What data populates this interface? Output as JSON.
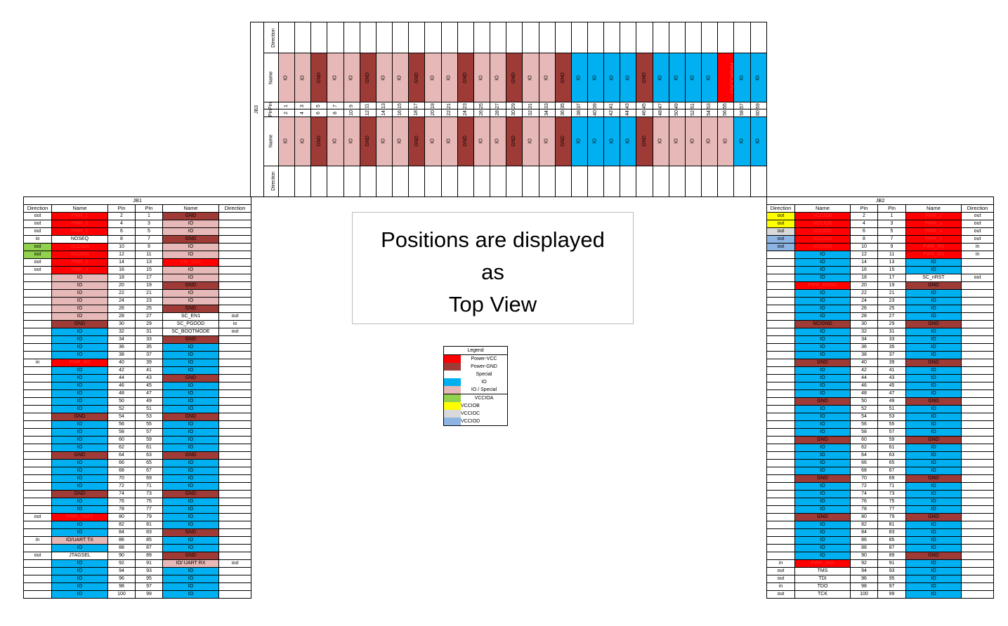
{
  "colors": {
    "vcc": "#ff0000",
    "gnd": "#9e3b37",
    "io": "#00b0f0",
    "iosp": "#e6b8b7",
    "vccioa": "#92d050",
    "vcciob": "#ffff00",
    "vccioc": "#d9d9d9",
    "vcciod": "#8db4e2",
    "white": "#ffffff"
  },
  "notice": [
    "Positions are displayed",
    "as",
    "Top View"
  ],
  "legend": {
    "title": "Legend",
    "items": [
      {
        "label": "Power-VCC",
        "type": "vcc"
      },
      {
        "label": "Power-GND",
        "type": "gnd"
      },
      {
        "label": "Special",
        "type": "white"
      },
      {
        "label": "IO",
        "type": "io"
      },
      {
        "label": "IO / Special",
        "type": "iosp"
      },
      {
        "label": "VCCIOA",
        "type": "vccioa"
      },
      {
        "label": "VCCIOB",
        "type": "vcciob"
      },
      {
        "label": "VCCIOC",
        "type": "vccioc"
      },
      {
        "label": "VCCIOD",
        "type": "vcciod"
      }
    ]
  },
  "jb1": {
    "title": "JB1",
    "headers": [
      "Direction",
      "Name",
      "Pin",
      "Pin",
      "Name",
      "Direction"
    ],
    "rows": [
      [
        "out",
        "PWR_1",
        "vcc",
        2,
        1,
        "GND",
        "gnd",
        ""
      ],
      [
        "out",
        "PWR_1",
        "vcc",
        4,
        3,
        "IO",
        "iosp",
        ""
      ],
      [
        "out",
        "PWR_1",
        "vcc",
        6,
        5,
        "IO",
        "iosp",
        ""
      ],
      [
        "io",
        "NOSEQ",
        "white",
        8,
        7,
        "GND",
        "gnd",
        ""
      ],
      [
        "out",
        "VCCIOA",
        "vcc",
        10,
        9,
        "IO",
        "iosp",
        ""
      ],
      [
        "out",
        "VCCIOA",
        "vcc",
        12,
        11,
        "IO",
        "iosp",
        ""
      ],
      [
        "out",
        "PWR_2",
        "vcc",
        14,
        13,
        "CM_VCC",
        "vcc",
        ""
      ],
      [
        "out",
        "PWR_2",
        "vcc",
        16,
        15,
        "IO",
        "iosp",
        ""
      ],
      [
        "",
        "IO",
        "iosp",
        18,
        17,
        "IO",
        "iosp",
        ""
      ],
      [
        "",
        "IO",
        "iosp",
        20,
        19,
        "GND",
        "gnd",
        ""
      ],
      [
        "",
        "IO",
        "iosp",
        22,
        21,
        "IO",
        "iosp",
        ""
      ],
      [
        "",
        "IO",
        "iosp",
        24,
        23,
        "IO",
        "iosp",
        ""
      ],
      [
        "",
        "IO",
        "iosp",
        26,
        25,
        "GND",
        "gnd",
        ""
      ],
      [
        "",
        "IO",
        "iosp",
        28,
        27,
        "SC_EN1",
        "white",
        "out"
      ],
      [
        "",
        "GND",
        "gnd",
        30,
        29,
        "SC_PGOOD",
        "white",
        "io"
      ],
      [
        "",
        "IO",
        "io",
        32,
        31,
        "SC_BOOTMODE",
        "white",
        "out"
      ],
      [
        "",
        "IO",
        "io",
        34,
        33,
        "GND",
        "gnd",
        ""
      ],
      [
        "",
        "IO",
        "io",
        36,
        35,
        "IO",
        "io",
        ""
      ],
      [
        "",
        "IO",
        "io",
        38,
        37,
        "IO",
        "io",
        ""
      ],
      [
        "in",
        "PWR_M2",
        "vcc",
        40,
        39,
        "IO",
        "io",
        ""
      ],
      [
        "",
        "IO",
        "io",
        42,
        41,
        "IO",
        "io",
        ""
      ],
      [
        "",
        "IO",
        "io",
        44,
        43,
        "GND",
        "gnd",
        ""
      ],
      [
        "",
        "IO",
        "io",
        46,
        45,
        "IO",
        "io",
        ""
      ],
      [
        "",
        "IO",
        "io",
        48,
        47,
        "IO",
        "io",
        ""
      ],
      [
        "",
        "IO",
        "io",
        50,
        49,
        "IO",
        "io",
        ""
      ],
      [
        "",
        "IO",
        "io",
        52,
        51,
        "IO",
        "io",
        ""
      ],
      [
        "",
        "GND",
        "gnd",
        54,
        53,
        "GND",
        "gnd",
        ""
      ],
      [
        "",
        "IO",
        "io",
        56,
        55,
        "IO",
        "io",
        ""
      ],
      [
        "",
        "IO",
        "io",
        58,
        57,
        "IO",
        "io",
        ""
      ],
      [
        "",
        "IO",
        "io",
        60,
        59,
        "IO",
        "io",
        ""
      ],
      [
        "",
        "IO",
        "io",
        62,
        61,
        "IO",
        "io",
        ""
      ],
      [
        "",
        "GND",
        "gnd",
        64,
        63,
        "GND",
        "gnd",
        ""
      ],
      [
        "",
        "IO",
        "io",
        66,
        65,
        "IO",
        "io",
        ""
      ],
      [
        "",
        "IO",
        "io",
        68,
        67,
        "IO",
        "io",
        ""
      ],
      [
        "",
        "IO",
        "io",
        70,
        69,
        "IO",
        "io",
        ""
      ],
      [
        "",
        "IO",
        "io",
        72,
        71,
        "IO",
        "io",
        ""
      ],
      [
        "",
        "GND",
        "gnd",
        74,
        73,
        "GND",
        "gnd",
        ""
      ],
      [
        "",
        "IO",
        "io",
        76,
        75,
        "IO",
        "io",
        ""
      ],
      [
        "",
        "IO",
        "io",
        78,
        77,
        "IO",
        "io",
        ""
      ],
      [
        "out",
        "PWR_VBAT",
        "vcc",
        80,
        79,
        "IO",
        "io",
        ""
      ],
      [
        "",
        "IO",
        "io",
        82,
        81,
        "IO",
        "io",
        ""
      ],
      [
        "",
        "IO",
        "io",
        84,
        83,
        "GND",
        "gnd",
        ""
      ],
      [
        "in",
        "IO/UART TX",
        "iosp",
        86,
        85,
        "IO",
        "io",
        ""
      ],
      [
        "",
        "IO",
        "io",
        88,
        87,
        "IO",
        "io",
        ""
      ],
      [
        "out",
        "JTAGSEL",
        "white",
        90,
        89,
        "GND",
        "gnd",
        ""
      ],
      [
        "",
        "IO",
        "io",
        92,
        91,
        "IO/ UART RX",
        "iosp",
        "out"
      ],
      [
        "",
        "IO",
        "io",
        94,
        93,
        "IO",
        "io",
        ""
      ],
      [
        "",
        "IO",
        "io",
        96,
        95,
        "IO",
        "io",
        ""
      ],
      [
        "",
        "IO",
        "io",
        98,
        97,
        "IO",
        "io",
        ""
      ],
      [
        "",
        "IO",
        "io",
        100,
        99,
        "IO",
        "io",
        ""
      ]
    ]
  },
  "jb2": {
    "title": "JB2",
    "headers": [
      "Direction",
      "Name",
      "Pin",
      "Pin",
      "Name",
      "Direction"
    ],
    "rows": [
      [
        "out",
        "vcciob",
        "VCCIOB",
        "vcc",
        2,
        1,
        "PWR_1",
        "vcc",
        "out"
      ],
      [
        "out",
        "vcciob",
        "VCCIOB",
        "vcc",
        4,
        3,
        "PWR_1",
        "vcc",
        "out"
      ],
      [
        "out",
        "vccioc",
        "VCCIOC",
        "vcc",
        6,
        5,
        "PWR_1",
        "vcc",
        "out"
      ],
      [
        "out",
        "vcciod",
        "VCCIOD",
        "vcc",
        8,
        7,
        "PWR_1",
        "vcc",
        "out"
      ],
      [
        "out",
        "vcciod",
        "VCCIOD",
        "vcc",
        10,
        9,
        "PWR_M1",
        "vcc",
        "in"
      ],
      [
        "",
        "",
        "IO",
        "io",
        12,
        11,
        "PWR_M1",
        "vcc",
        "in"
      ],
      [
        "",
        "",
        "IO",
        "io",
        14,
        13,
        "IO",
        "io",
        ""
      ],
      [
        "",
        "",
        "IO",
        "io",
        16,
        15,
        "IO",
        "io",
        ""
      ],
      [
        "",
        "",
        "IO",
        "io",
        18,
        17,
        "SC_nRST",
        "white",
        "out"
      ],
      [
        "",
        "",
        "PWR_M3/NC",
        "vcc",
        20,
        19,
        "GND",
        "gnd",
        ""
      ],
      [
        "",
        "",
        "IO",
        "io",
        22,
        21,
        "IO",
        "io",
        ""
      ],
      [
        "",
        "",
        "IO",
        "io",
        24,
        23,
        "IO",
        "io",
        ""
      ],
      [
        "",
        "",
        "IO",
        "io",
        26,
        25,
        "IO",
        "io",
        ""
      ],
      [
        "",
        "",
        "IO",
        "io",
        28,
        27,
        "IO",
        "io",
        ""
      ],
      [
        "",
        "",
        "NC/GND",
        "gnd",
        30,
        29,
        "GND",
        "gnd",
        ""
      ],
      [
        "",
        "",
        "IO",
        "io",
        32,
        31,
        "IO",
        "io",
        ""
      ],
      [
        "",
        "",
        "IO",
        "io",
        34,
        33,
        "IO",
        "io",
        ""
      ],
      [
        "",
        "",
        "IO",
        "io",
        36,
        35,
        "IO",
        "io",
        ""
      ],
      [
        "",
        "",
        "IO",
        "io",
        38,
        37,
        "IO",
        "io",
        ""
      ],
      [
        "",
        "",
        "GND",
        "gnd",
        40,
        39,
        "GND",
        "gnd",
        ""
      ],
      [
        "",
        "",
        "IO",
        "io",
        42,
        41,
        "IO",
        "io",
        ""
      ],
      [
        "",
        "",
        "IO",
        "io",
        44,
        43,
        "IO",
        "io",
        ""
      ],
      [
        "",
        "",
        "IO",
        "io",
        46,
        45,
        "IO",
        "io",
        ""
      ],
      [
        "",
        "",
        "IO",
        "io",
        48,
        47,
        "IO",
        "io",
        ""
      ],
      [
        "",
        "",
        "GND",
        "gnd",
        50,
        49,
        "GND",
        "gnd",
        ""
      ],
      [
        "",
        "",
        "IO",
        "io",
        52,
        51,
        "IO",
        "io",
        ""
      ],
      [
        "",
        "",
        "IO",
        "io",
        54,
        53,
        "IO",
        "io",
        ""
      ],
      [
        "",
        "",
        "IO",
        "io",
        56,
        55,
        "IO",
        "io",
        ""
      ],
      [
        "",
        "",
        "IO",
        "io",
        58,
        57,
        "IO",
        "io",
        ""
      ],
      [
        "",
        "",
        "GND",
        "gnd",
        60,
        59,
        "GND",
        "gnd",
        ""
      ],
      [
        "",
        "",
        "IO",
        "io",
        62,
        61,
        "IO",
        "io",
        ""
      ],
      [
        "",
        "",
        "IO",
        "io",
        64,
        63,
        "IO",
        "io",
        ""
      ],
      [
        "",
        "",
        "IO",
        "io",
        66,
        65,
        "IO",
        "io",
        ""
      ],
      [
        "",
        "",
        "IO",
        "io",
        68,
        67,
        "IO",
        "io",
        ""
      ],
      [
        "",
        "",
        "GND",
        "gnd",
        70,
        69,
        "GND",
        "gnd",
        ""
      ],
      [
        "",
        "",
        "IO",
        "io",
        72,
        71,
        "IO",
        "io",
        ""
      ],
      [
        "",
        "",
        "IO",
        "io",
        74,
        73,
        "IO",
        "io",
        ""
      ],
      [
        "",
        "",
        "IO",
        "io",
        76,
        75,
        "IO",
        "io",
        ""
      ],
      [
        "",
        "",
        "IO",
        "io",
        78,
        77,
        "IO",
        "io",
        ""
      ],
      [
        "",
        "",
        "GND",
        "gnd",
        80,
        79,
        "GND",
        "gnd",
        ""
      ],
      [
        "",
        "",
        "IO",
        "io",
        82,
        81,
        "IO",
        "io",
        ""
      ],
      [
        "",
        "",
        "IO",
        "io",
        84,
        83,
        "IO",
        "io",
        ""
      ],
      [
        "",
        "",
        "IO",
        "io",
        86,
        85,
        "IO",
        "io",
        ""
      ],
      [
        "",
        "",
        "IO",
        "io",
        88,
        87,
        "IO",
        "io",
        ""
      ],
      [
        "",
        "",
        "IO",
        "io",
        90,
        89,
        "GND",
        "gnd",
        ""
      ],
      [
        "in",
        "",
        "PWR_DIO",
        "vcc",
        92,
        91,
        "IO",
        "io",
        ""
      ],
      [
        "out",
        "",
        "TMS",
        "white",
        94,
        93,
        "IO",
        "io",
        ""
      ],
      [
        "out",
        "",
        "TDI",
        "white",
        96,
        95,
        "IO",
        "io",
        ""
      ],
      [
        "in",
        "",
        "TDO",
        "white",
        98,
        97,
        "IO",
        "io",
        ""
      ],
      [
        "out",
        "",
        "TCK",
        "white",
        100,
        99,
        "IO",
        "io",
        ""
      ]
    ]
  },
  "jb3": {
    "title": "JB3",
    "labels": {
      "direction": "Direction",
      "name": "Name",
      "pin": "Pin"
    },
    "top": [
      [
        "IO",
        "iosp",
        1
      ],
      [
        "IO",
        "iosp",
        3
      ],
      [
        "GND",
        "gnd",
        5
      ],
      [
        "IO",
        "iosp",
        7
      ],
      [
        "IO",
        "iosp",
        9
      ],
      [
        "GND",
        "gnd",
        11
      ],
      [
        "IO",
        "iosp",
        13
      ],
      [
        "IO",
        "iosp",
        15
      ],
      [
        "GND",
        "gnd",
        17
      ],
      [
        "IO",
        "iosp",
        19
      ],
      [
        "IO",
        "iosp",
        21
      ],
      [
        "GND",
        "gnd",
        23
      ],
      [
        "IO",
        "iosp",
        25
      ],
      [
        "IO",
        "iosp",
        27
      ],
      [
        "GND",
        "gnd",
        29
      ],
      [
        "IO",
        "iosp",
        31
      ],
      [
        "IO",
        "iosp",
        33
      ],
      [
        "GND",
        "gnd",
        35
      ],
      [
        "IO",
        "io",
        37
      ],
      [
        "IO",
        "io",
        39
      ],
      [
        "IO",
        "io",
        41
      ],
      [
        "IO",
        "io",
        43
      ],
      [
        "GND",
        "gnd",
        45
      ],
      [
        "IO",
        "io",
        47
      ],
      [
        "IO",
        "io",
        49
      ],
      [
        "IO",
        "io",
        51
      ],
      [
        "IO",
        "io",
        53
      ],
      [
        "CNC/CM/NR4",
        "vcc",
        55
      ],
      [
        "IO",
        "io",
        57
      ],
      [
        "IO",
        "io",
        59
      ]
    ],
    "bottom": [
      [
        "IO",
        "iosp",
        2
      ],
      [
        "IO",
        "iosp",
        4
      ],
      [
        "GND",
        "gnd",
        6
      ],
      [
        "IO",
        "iosp",
        8
      ],
      [
        "IO",
        "iosp",
        10
      ],
      [
        "GND",
        "gnd",
        12
      ],
      [
        "IO",
        "iosp",
        14
      ],
      [
        "IO",
        "iosp",
        16
      ],
      [
        "GND",
        "gnd",
        18
      ],
      [
        "IO",
        "iosp",
        20
      ],
      [
        "IO",
        "iosp",
        22
      ],
      [
        "GND",
        "gnd",
        24
      ],
      [
        "IO",
        "iosp",
        26
      ],
      [
        "IO",
        "iosp",
        28
      ],
      [
        "GND",
        "gnd",
        30
      ],
      [
        "IO",
        "iosp",
        32
      ],
      [
        "IO",
        "iosp",
        34
      ],
      [
        "GND",
        "gnd",
        36
      ],
      [
        "IO",
        "io",
        38
      ],
      [
        "IO",
        "io",
        40
      ],
      [
        "IO",
        "io",
        42
      ],
      [
        "IO",
        "io",
        44
      ],
      [
        "GND",
        "gnd",
        46
      ],
      [
        "IO",
        "iosp",
        48
      ],
      [
        "IO",
        "iosp",
        50
      ],
      [
        "IO",
        "iosp",
        52
      ],
      [
        "IO",
        "iosp",
        54
      ],
      [
        "IO",
        "iosp",
        56
      ],
      [
        "IO",
        "io",
        58
      ],
      [
        "IO",
        "io",
        60
      ]
    ]
  }
}
